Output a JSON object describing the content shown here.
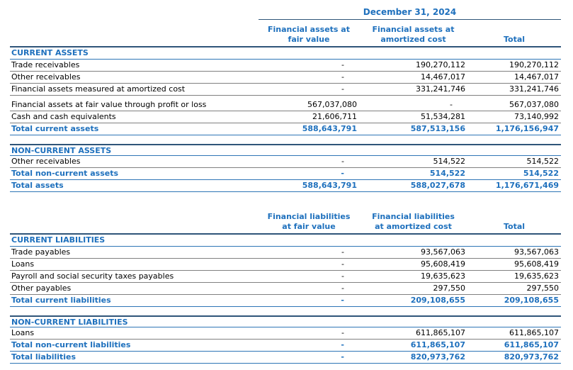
{
  "colors": {
    "accent_blue_text": "#1E70BD",
    "rule_blue": "#2E75B6",
    "rule_navy": "#2F5579",
    "rule_gray": "#808080"
  },
  "tables": [
    {
      "id": "assets",
      "date_header": "December 31, 2024",
      "columns": [
        {
          "line1": "Financial assets at",
          "line2": "fair value"
        },
        {
          "line1": "Financial assets at",
          "line2": "amortized cost"
        },
        {
          "line1": "",
          "line2": "Total"
        }
      ],
      "sections": [
        {
          "title": "CURRENT ASSETS",
          "rows": [
            {
              "label": "Trade receivables",
              "values": [
                "-",
                "190,270,112",
                "190,270,112"
              ]
            },
            {
              "label": "Other receivables",
              "values": [
                "-",
                "14,467,017",
                "14,467,017"
              ]
            },
            {
              "label": "Financial assets measured at amortized cost",
              "values": [
                "-",
                "331,241,746",
                "331,241,746"
              ],
              "gap_after": true
            },
            {
              "label": "Financial assets at fair value through profit or loss",
              "values": [
                "567,037,080",
                "-",
                "567,037,080"
              ]
            },
            {
              "label": "Cash and cash equivalents",
              "values": [
                "21,606,711",
                "51,534,281",
                "73,140,992"
              ]
            }
          ],
          "totals": [
            {
              "label": "Total current assets",
              "values": [
                "588,643,791",
                "587,513,156",
                "1,176,156,947"
              ]
            }
          ]
        },
        {
          "title": "NON-CURRENT ASSETS",
          "rows": [
            {
              "label": "Other receivables",
              "values": [
                "-",
                "514,522",
                "514,522"
              ]
            }
          ],
          "totals": [
            {
              "label": "Total non-current assets",
              "values": [
                "-",
                "514,522",
                "514,522"
              ]
            },
            {
              "label": "Total assets",
              "values": [
                "588,643,791",
                "588,027,678",
                "1,176,671,469"
              ]
            }
          ]
        }
      ]
    },
    {
      "id": "liabilities",
      "date_header": null,
      "columns": [
        {
          "line1": "Financial liabilities",
          "line2": "at fair value"
        },
        {
          "line1": "Financial liabilities",
          "line2": "at amortized cost"
        },
        {
          "line1": "",
          "line2": "Total"
        }
      ],
      "sections": [
        {
          "title": "CURRENT LIABILITIES",
          "rows": [
            {
              "label": "Trade payables",
              "values": [
                "-",
                "93,567,063",
                "93,567,063"
              ]
            },
            {
              "label": "Loans",
              "values": [
                "-",
                "95,608,419",
                "95,608,419"
              ]
            },
            {
              "label": "Payroll and social security taxes payables",
              "values": [
                "-",
                "19,635,623",
                "19,635,623"
              ]
            },
            {
              "label": "Other payables",
              "values": [
                "-",
                "297,550",
                "297,550"
              ]
            }
          ],
          "totals": [
            {
              "label": "Total current liabilities",
              "values": [
                "-",
                "209,108,655",
                "209,108,655"
              ]
            }
          ]
        },
        {
          "title": "NON-CURRENT LIABILITIES",
          "rows": [
            {
              "label": "Loans",
              "values": [
                "-",
                "611,865,107",
                "611,865,107"
              ]
            }
          ],
          "totals": [
            {
              "label": "Total non-current liabilities",
              "values": [
                "-",
                "611,865,107",
                "611,865,107"
              ]
            },
            {
              "label": "Total liabilities",
              "values": [
                "-",
                "820,973,762",
                "820,973,762"
              ]
            }
          ]
        }
      ]
    }
  ]
}
